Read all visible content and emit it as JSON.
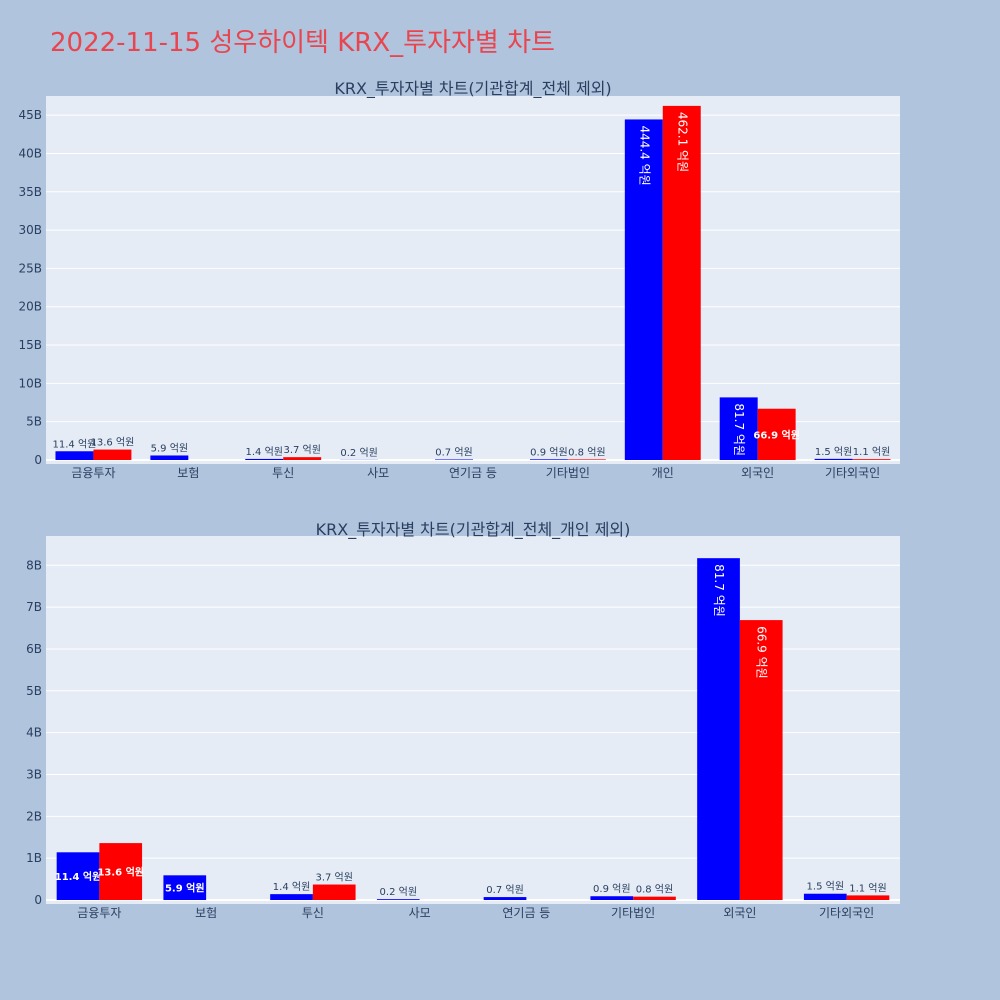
{
  "page_title": "2022-11-15 성우하이텍 KRX_투자자별 차트",
  "colors": {
    "buy": "#0000ff",
    "sell": "#ff0000",
    "plot_bg": "#e5ecf6",
    "page_bg": "#b0c4de",
    "title": "#e8454f"
  },
  "chart_data": [
    {
      "type": "bar",
      "title": "KRX_투자자별 차트(기관합계_전체 제외)",
      "categories": [
        "금융투자",
        "보험",
        "투신",
        "사모",
        "연기금 등",
        "기타법인",
        "개인",
        "외국인",
        "기타외국인"
      ],
      "series": [
        {
          "values": [
            1.14,
            0.59,
            0.14,
            0.02,
            0.07,
            0.09,
            44.44,
            8.17,
            0.15
          ],
          "labels": [
            "11.4 억원",
            "5.9 억원",
            "1.4 억원",
            "0.2 억원",
            "0.7 억원",
            "0.9 억원",
            "444.4 억원",
            "81.7 억원",
            "1.5 억원"
          ]
        },
        {
          "values": [
            1.36,
            0,
            0.37,
            0,
            0,
            0.08,
            46.21,
            6.69,
            0.11
          ],
          "labels": [
            "13.6 억원",
            "",
            "3.7 억원",
            "",
            "",
            "0.8 억원",
            "462.1 억원",
            "66.9 억원",
            "1.1 억원"
          ]
        }
      ],
      "yticks": [
        "0",
        "5B",
        "10B",
        "15B",
        "20B",
        "25B",
        "30B",
        "35B",
        "40B",
        "45B"
      ],
      "ylim": [
        0,
        47.5
      ],
      "grid": true
    },
    {
      "type": "bar",
      "title": "KRX_투자자별 차트(기관합계_전체_개인 제외)",
      "categories": [
        "금융투자",
        "보험",
        "투신",
        "사모",
        "연기금 등",
        "기타법인",
        "외국인",
        "기타외국인"
      ],
      "series": [
        {
          "values": [
            1.14,
            0.59,
            0.14,
            0.02,
            0.07,
            0.09,
            8.17,
            0.15
          ],
          "labels": [
            "11.4 억원",
            "5.9 억원",
            "1.4 억원",
            "0.2 억원",
            "0.7 억원",
            "0.9 억원",
            "81.7 억원",
            "1.5 억원"
          ]
        },
        {
          "values": [
            1.36,
            0,
            0.37,
            0,
            0,
            0.08,
            6.69,
            0.11
          ],
          "labels": [
            "13.6 억원",
            "",
            "3.7 억원",
            "",
            "",
            "0.8 억원",
            "66.9 억원",
            "1.1 억원"
          ]
        }
      ],
      "yticks": [
        "0",
        "1B",
        "2B",
        "3B",
        "4B",
        "5B",
        "6B",
        "7B",
        "8B"
      ],
      "ylim": [
        0,
        8.7
      ],
      "grid": true
    }
  ]
}
